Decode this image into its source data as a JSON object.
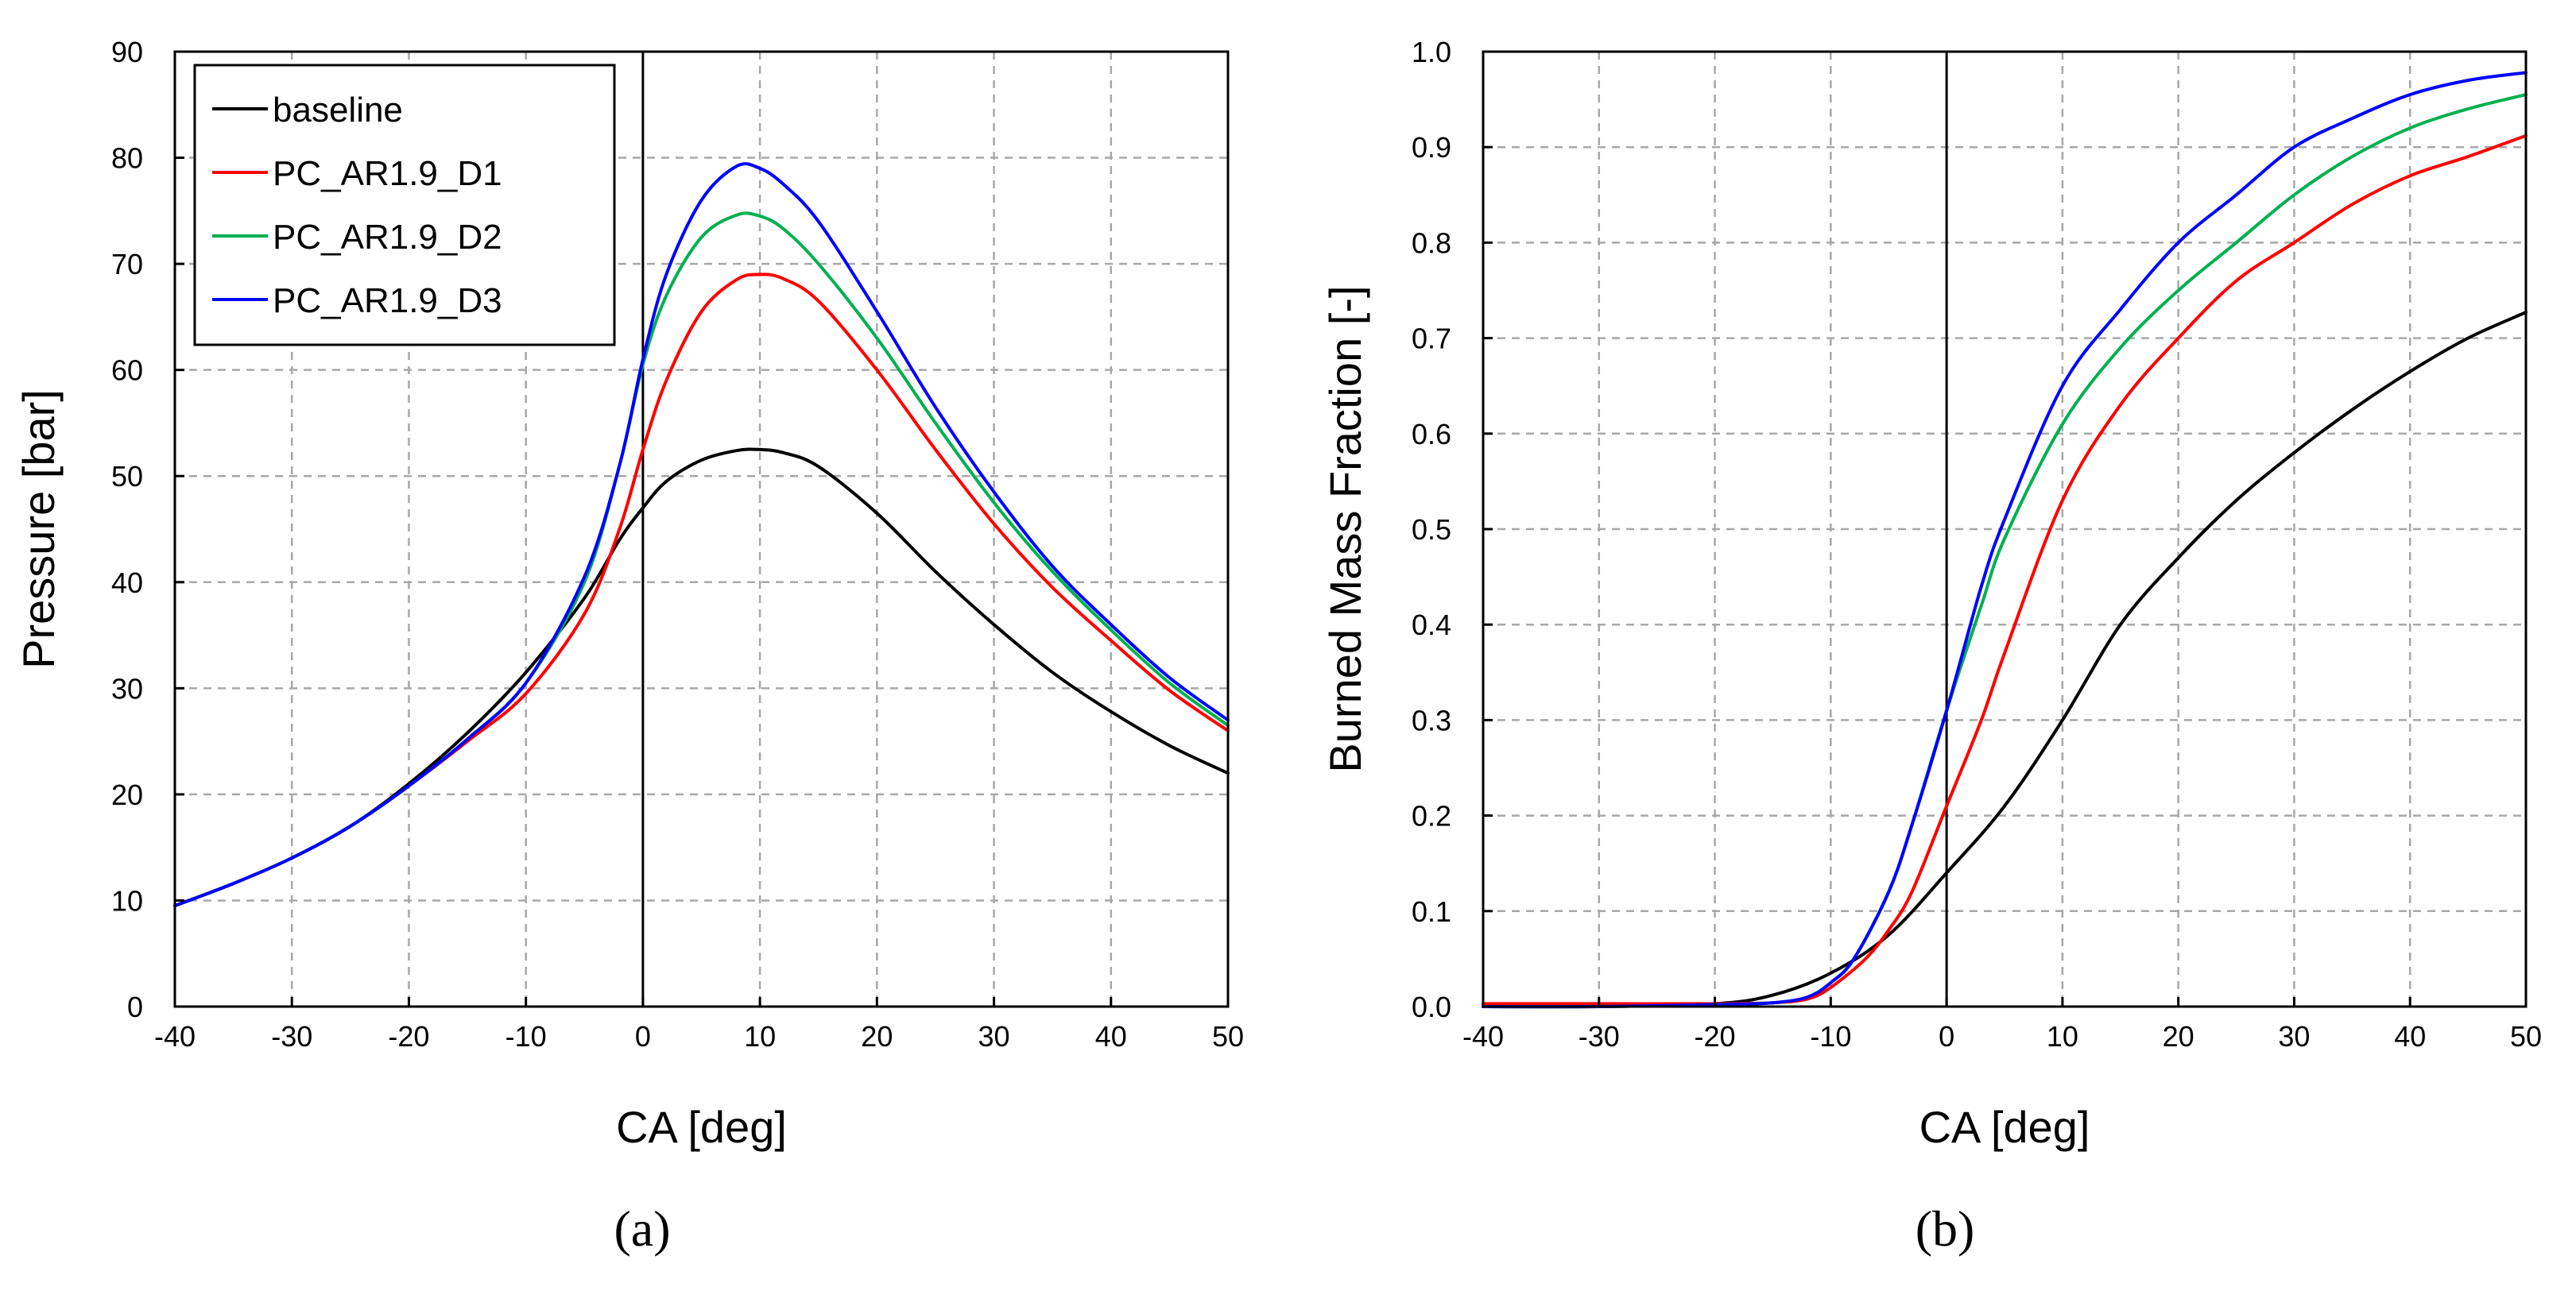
{
  "chart_data": [
    {
      "type": "line",
      "panel_label": "(a)",
      "xlabel": "CA [deg]",
      "ylabel": "Pressure [bar]",
      "xlim": [
        -40,
        50
      ],
      "ylim": [
        0,
        90
      ],
      "xticks": [
        -40,
        -30,
        -20,
        -10,
        0,
        10,
        20,
        30,
        40,
        50
      ],
      "yticks": [
        0,
        10,
        20,
        30,
        40,
        50,
        60,
        70,
        80,
        90
      ],
      "grid": true,
      "legend_position": "top-left",
      "series": [
        {
          "name": "baseline",
          "color": "#000000",
          "x": [
            -40,
            -35,
            -30,
            -25,
            -20,
            -15,
            -10,
            -5,
            -2,
            0,
            2,
            5,
            8,
            10,
            12,
            15,
            20,
            25,
            30,
            35,
            40,
            45,
            50
          ],
          "y": [
            9.5,
            11.6,
            14.0,
            17.0,
            21.0,
            25.8,
            31.5,
            38.5,
            44.0,
            47.0,
            49.5,
            51.5,
            52.4,
            52.5,
            52.2,
            50.9,
            46.5,
            41.0,
            36.0,
            31.5,
            27.8,
            24.6,
            22.0
          ]
        },
        {
          "name": "PC_AR1.9_D1",
          "color": "#ff0000",
          "x": [
            -40,
            -35,
            -30,
            -25,
            -20,
            -15,
            -10,
            -5,
            -2,
            0,
            2,
            5,
            8,
            10,
            12,
            15,
            20,
            25,
            30,
            35,
            40,
            45,
            50
          ],
          "y": [
            9.5,
            11.6,
            14.0,
            17.0,
            20.8,
            25.0,
            29.5,
            37.0,
            45.0,
            52.5,
            59.0,
            65.5,
            68.5,
            69.0,
            68.6,
            66.5,
            60.0,
            52.5,
            45.5,
            39.5,
            34.5,
            29.8,
            26.0
          ]
        },
        {
          "name": "PC_AR1.9_D2",
          "color": "#00b050",
          "x": [
            -40,
            -35,
            -30,
            -25,
            -20,
            -15,
            -10,
            -5,
            -2,
            0,
            2,
            5,
            8,
            10,
            12,
            15,
            20,
            25,
            30,
            35,
            40,
            45,
            50
          ],
          "y": [
            9.5,
            11.6,
            14.0,
            17.0,
            20.8,
            25.2,
            30.5,
            40.0,
            51.0,
            60.5,
            67.0,
            72.5,
            74.6,
            74.5,
            73.3,
            70.0,
            63.0,
            55.0,
            47.5,
            41.0,
            35.5,
            30.5,
            26.5
          ]
        },
        {
          "name": "PC_AR1.9_D3",
          "color": "#0000ff",
          "x": [
            -40,
            -35,
            -30,
            -25,
            -20,
            -15,
            -10,
            -5,
            -2,
            0,
            2,
            5,
            8,
            10,
            12,
            15,
            20,
            25,
            30,
            35,
            40,
            45,
            50
          ],
          "y": [
            9.5,
            11.6,
            14.0,
            17.0,
            20.8,
            25.2,
            30.5,
            40.5,
            51.0,
            61.0,
            69.0,
            76.0,
            79.2,
            79.0,
            77.5,
            74.0,
            65.5,
            56.5,
            48.5,
            41.5,
            36.0,
            31.0,
            27.0
          ]
        }
      ]
    },
    {
      "type": "line",
      "panel_label": "(b)",
      "xlabel": "CA [deg]",
      "ylabel": "Burned Mass Fraction [-]",
      "xlim": [
        -40,
        50
      ],
      "ylim": [
        0.0,
        1.0
      ],
      "xticks": [
        -40,
        -30,
        -20,
        -10,
        0,
        10,
        20,
        30,
        40,
        50
      ],
      "yticks": [
        "0.0",
        "0.1",
        "0.2",
        "0.3",
        "0.4",
        "0.5",
        "0.6",
        "0.7",
        "0.8",
        "0.9",
        "1.0"
      ],
      "grid": true,
      "series": [
        {
          "name": "baseline",
          "color": "#000000",
          "x": [
            -40,
            -30,
            -20,
            -15,
            -10,
            -5,
            0,
            5,
            10,
            15,
            20,
            25,
            30,
            35,
            40,
            45,
            50
          ],
          "y": [
            0.0,
            0.0,
            0.003,
            0.012,
            0.035,
            0.075,
            0.14,
            0.21,
            0.3,
            0.4,
            0.47,
            0.53,
            0.58,
            0.625,
            0.665,
            0.7,
            0.727
          ]
        },
        {
          "name": "PC_AR1.9_D1",
          "color": "#ff0000",
          "x": [
            -40,
            -30,
            -20,
            -15,
            -12,
            -10,
            -7,
            -5,
            -3,
            0,
            3,
            5,
            10,
            15,
            20,
            25,
            30,
            35,
            40,
            45,
            50
          ],
          "y": [
            0.003,
            0.003,
            0.003,
            0.004,
            0.008,
            0.02,
            0.05,
            0.08,
            0.12,
            0.21,
            0.3,
            0.37,
            0.53,
            0.63,
            0.7,
            0.76,
            0.8,
            0.84,
            0.87,
            0.89,
            0.912
          ]
        },
        {
          "name": "PC_AR1.9_D2",
          "color": "#00b050",
          "x": [
            -40,
            -30,
            -20,
            -15,
            -12,
            -10,
            -8,
            -5,
            -3,
            0,
            3,
            5,
            10,
            15,
            20,
            25,
            30,
            35,
            40,
            45,
            50
          ],
          "y": [
            0.0,
            0.0,
            0.002,
            0.004,
            0.01,
            0.025,
            0.05,
            0.12,
            0.19,
            0.31,
            0.42,
            0.49,
            0.61,
            0.69,
            0.75,
            0.8,
            0.85,
            0.89,
            0.92,
            0.94,
            0.955
          ]
        },
        {
          "name": "PC_AR1.9_D3",
          "color": "#0000ff",
          "x": [
            -40,
            -30,
            -20,
            -15,
            -12,
            -10,
            -8,
            -5,
            -3,
            0,
            3,
            5,
            10,
            15,
            20,
            25,
            30,
            35,
            40,
            45,
            50
          ],
          "y": [
            0.0,
            0.0,
            0.002,
            0.004,
            0.01,
            0.025,
            0.05,
            0.12,
            0.19,
            0.31,
            0.44,
            0.51,
            0.65,
            0.73,
            0.8,
            0.85,
            0.9,
            0.93,
            0.955,
            0.97,
            0.978
          ]
        }
      ]
    }
  ]
}
